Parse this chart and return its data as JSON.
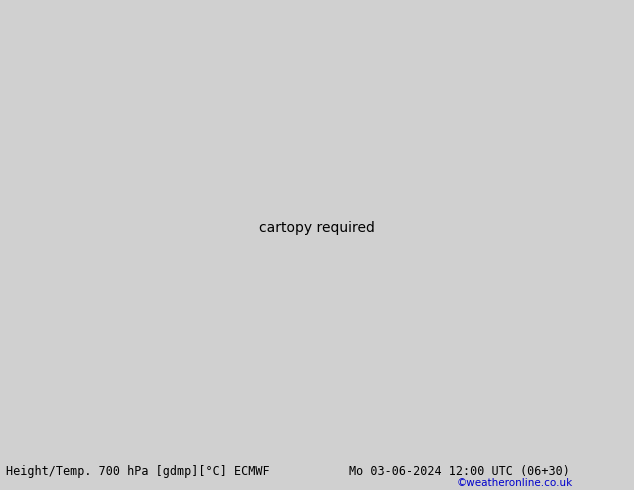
{
  "title_left": "Height/Temp. 700 hPa [gdmp][°C] ECMWF",
  "title_right": "Mo 03-06-2024 12:00 UTC (06+30)",
  "credit": "©weatheronline.co.uk",
  "background_color": "#d0d0d0",
  "land_color": "#b8edb8",
  "coast_color": "#808080",
  "height_contour_color": "#000000",
  "temp_pink_color": "#e0007f",
  "temp_red_color": "#cc2200",
  "temp_orange_color": "#dd7700",
  "title_fontsize": 8.5,
  "credit_color": "#0000cc",
  "fig_width": 6.34,
  "fig_height": 4.9,
  "dpi": 100,
  "extent": [
    60,
    180,
    -60,
    10
  ]
}
